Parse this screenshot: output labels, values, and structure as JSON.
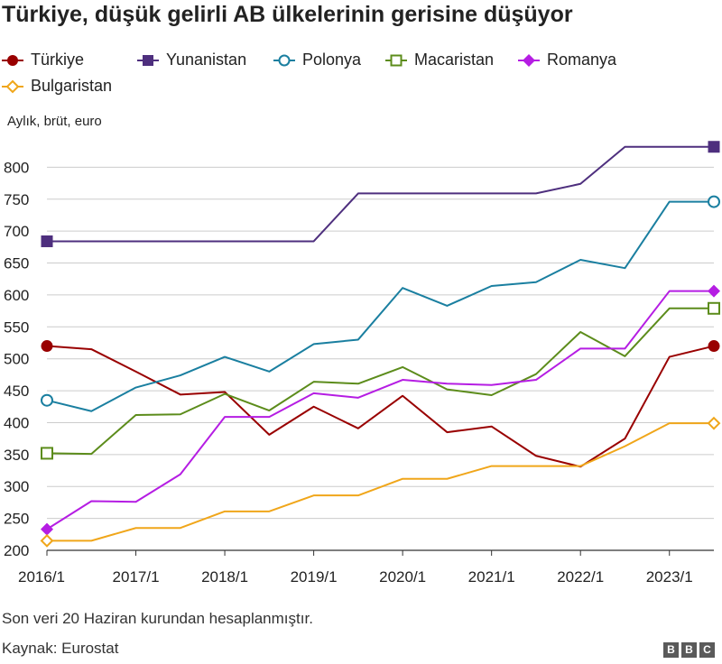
{
  "title": "Türkiye, düşük gelirli AB ülkelerinin gerisine düşüyor",
  "units_label": "Aylık, brüt, euro",
  "note": "Son veri 20 Haziran kurundan hesaplanmıştır.",
  "source": "Kaynak: Eurostat",
  "logo": [
    "B",
    "B",
    "C"
  ],
  "chart_data": {
    "type": "line",
    "title": "Türkiye, düşük gelirli AB ülkelerinin gerisine düşüyor",
    "ylabel": "Aylık, brüt, euro",
    "xlabel": "",
    "ylim": [
      200,
      850
    ],
    "yticks": [
      200,
      250,
      300,
      350,
      400,
      450,
      500,
      550,
      600,
      650,
      700,
      750,
      800
    ],
    "x": [
      "2016/1",
      "2016/7",
      "2017/1",
      "2017/7",
      "2018/1",
      "2018/7",
      "2019/1",
      "2019/7",
      "2020/1",
      "2020/7",
      "2021/1",
      "2021/7",
      "2022/1",
      "2022/7",
      "2023/1",
      "2023/7"
    ],
    "xtick_labels": [
      "2016/1",
      "2017/1",
      "2018/1",
      "2019/1",
      "2020/1",
      "2021/1",
      "2022/1",
      "2023/1"
    ],
    "grid": "horizontal",
    "legend_position": "top",
    "series": [
      {
        "name": "Türkiye",
        "color": "#990000",
        "marker": "circle",
        "values": [
          520,
          515,
          480,
          444,
          448,
          381,
          425,
          391,
          442,
          385,
          394,
          348,
          331,
          375,
          503,
          520
        ]
      },
      {
        "name": "Yunanistan",
        "color": "#4e2f7e",
        "marker": "square",
        "values": [
          684,
          684,
          684,
          684,
          684,
          684,
          684,
          759,
          759,
          759,
          759,
          759,
          774,
          832,
          832,
          832
        ]
      },
      {
        "name": "Polonya",
        "color": "#1a7fa0",
        "marker": "circle-open",
        "values": [
          435,
          418,
          455,
          474,
          503,
          480,
          523,
          530,
          611,
          583,
          614,
          620,
          655,
          642,
          746,
          746
        ]
      },
      {
        "name": "Macaristan",
        "color": "#5c8c1b",
        "marker": "square-open",
        "values": [
          352,
          351,
          412,
          413,
          445,
          419,
          464,
          461,
          487,
          452,
          443,
          476,
          542,
          504,
          579,
          579
        ]
      },
      {
        "name": "Romanya",
        "color": "#b51de3",
        "marker": "diamond",
        "values": [
          233,
          277,
          276,
          319,
          409,
          409,
          446,
          439,
          467,
          461,
          459,
          467,
          516,
          516,
          606,
          606
        ]
      },
      {
        "name": "Bulgaristan",
        "color": "#f0a61a",
        "marker": "diamond-open",
        "values": [
          215,
          215,
          235,
          235,
          261,
          261,
          286,
          286,
          312,
          312,
          332,
          332,
          332,
          363,
          399,
          399
        ]
      }
    ]
  }
}
